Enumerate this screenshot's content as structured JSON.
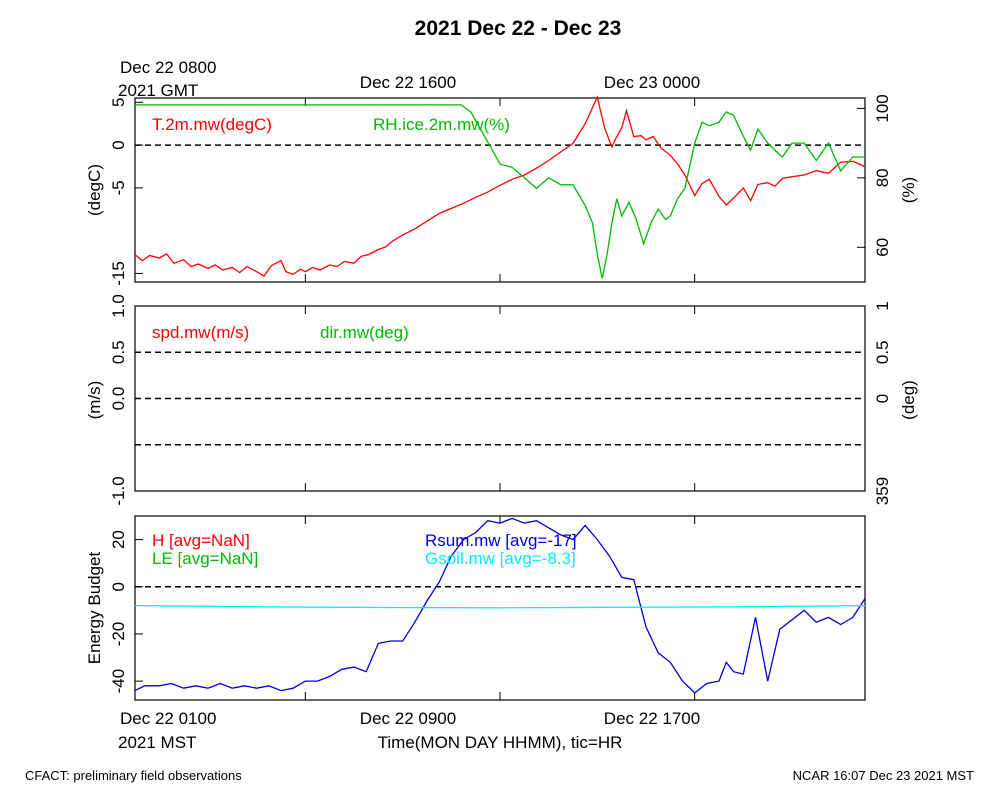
{
  "title": "2021 Dec 22 - Dec 23",
  "top_axis": {
    "first_label_line1": "Dec 22 0800",
    "first_label_line2": "2021 GMT",
    "labels": [
      "Dec 22 1600",
      "Dec 23 0000"
    ]
  },
  "bottom_axis": {
    "first_label_line1": "Dec 22 0100",
    "first_label_line2": "2021 MST",
    "labels": [
      "Dec 22 0900",
      "Dec 22 1700"
    ],
    "title": "Time(MON DAY HHMM), tic=HR"
  },
  "footer": {
    "left": "CFACT: preliminary field observations",
    "right": "NCAR 16:07 Dec 23 2021 MST"
  },
  "colors": {
    "red": "#ff0000",
    "green": "#00bb00",
    "blue": "#0000dd",
    "cyan": "#00eeff",
    "black": "#000000"
  },
  "chart_data": [
    {
      "type": "line",
      "x_unit": "hours since Dec 22 0100 MST",
      "xlim": [
        0,
        30
      ],
      "left_axis": {
        "label": "(degC)",
        "ylim": [
          -16,
          5.5
        ],
        "ticks": [
          "5",
          "0",
          "-5",
          "-15"
        ]
      },
      "right_axis": {
        "label": "(%)",
        "ylim": [
          50,
          103
        ],
        "ticks": [
          "100",
          "80",
          "60"
        ]
      },
      "zero_line": 0,
      "series": [
        {
          "name": "T.2m.mw(degC)",
          "axis": "left",
          "color": "red",
          "x": [
            0,
            0.3,
            0.6,
            1,
            1.3,
            1.6,
            2,
            2.3,
            2.6,
            3,
            3.3,
            3.6,
            4,
            4.3,
            4.6,
            5,
            5.3,
            5.6,
            6,
            6.2,
            6.5,
            6.8,
            7,
            7.3,
            7.6,
            8,
            8.3,
            8.6,
            9,
            9.3,
            9.6,
            10,
            10.3,
            10.6,
            11,
            11.5,
            12,
            12.5,
            13,
            13.5,
            14,
            14.5,
            15,
            15.5,
            16,
            16.5,
            17,
            17.5,
            18,
            18.5,
            19,
            19.3,
            19.6,
            19.8,
            20,
            20.2,
            20.5,
            20.8,
            21,
            21.3,
            21.6,
            22,
            22.3,
            22.6,
            23,
            23.3,
            23.6,
            24,
            24.3,
            24.6,
            25,
            25.3,
            25.6,
            26,
            26.3,
            26.6,
            27,
            27.5,
            28,
            28.5,
            29,
            29.5,
            30
          ],
          "y": [
            -12.8,
            -13.5,
            -12.9,
            -13.2,
            -12.7,
            -13.8,
            -13.4,
            -14.2,
            -13.9,
            -14.4,
            -14.0,
            -14.6,
            -14.3,
            -14.9,
            -14.2,
            -14.8,
            -15.3,
            -14.1,
            -13.5,
            -14.8,
            -15.1,
            -14.5,
            -14.8,
            -14.3,
            -14.6,
            -14.0,
            -14.2,
            -13.6,
            -13.8,
            -13.0,
            -12.8,
            -12.2,
            -11.9,
            -11.2,
            -10.5,
            -9.8,
            -8.9,
            -8.0,
            -7.4,
            -6.8,
            -6.1,
            -5.5,
            -4.7,
            -4.0,
            -3.5,
            -2.7,
            -1.8,
            -0.8,
            0.2,
            2.5,
            5.6,
            2.0,
            -0.2,
            1.0,
            2.0,
            4.0,
            1.0,
            1.1,
            0.6,
            1.0,
            -0.3,
            -1.2,
            -2.2,
            -3.5,
            -5.9,
            -4.5,
            -4.0,
            -6.0,
            -7.0,
            -6.2,
            -5.0,
            -6.5,
            -4.6,
            -4.4,
            -4.8,
            -3.9,
            -3.7,
            -3.5,
            -3.0,
            -3.3,
            -2.0,
            -1.9,
            -2.5
          ]
        },
        {
          "name": "RH.ice.2m.mw(%)",
          "axis": "right",
          "color": "green",
          "x": [
            0,
            3,
            6,
            9,
            12,
            13.4,
            13.8,
            14.2,
            14.6,
            15,
            15.5,
            16,
            16.5,
            17,
            17.5,
            18,
            18.5,
            18.8,
            19,
            19.2,
            19.4,
            19.6,
            19.8,
            20,
            20.3,
            20.6,
            20.9,
            21.2,
            21.5,
            21.8,
            22,
            22.3,
            22.6,
            23,
            23.3,
            23.6,
            24,
            24.3,
            24.6,
            25,
            25.3,
            25.6,
            26,
            26.3,
            26.6,
            27,
            27.5,
            28,
            28.5,
            29,
            29.5,
            30
          ],
          "y": [
            101,
            101,
            101,
            101,
            101,
            101,
            99,
            94,
            89,
            84,
            83,
            80,
            77,
            80,
            78,
            78,
            72,
            67,
            58,
            51,
            58,
            67,
            74,
            69,
            73,
            68,
            61,
            67,
            71,
            68,
            69,
            74,
            77,
            90,
            96,
            95,
            96,
            99,
            98,
            92,
            88,
            94,
            90,
            88,
            86,
            90,
            90,
            85,
            90,
            82,
            86,
            86
          ]
        }
      ]
    },
    {
      "type": "line",
      "x_unit": "hours since Dec 22 0100 MST",
      "xlim": [
        0,
        30
      ],
      "left_axis": {
        "label": "(m/s)",
        "ylim": [
          -1.0,
          1.0
        ],
        "ticks": [
          "1.0",
          "0.5",
          "0.0",
          "-1.0"
        ]
      },
      "right_axis": {
        "label": "(deg)",
        "ticks": [
          "1",
          "0.5",
          "0",
          "359"
        ]
      },
      "dashed_levels": [
        0.5,
        0.0,
        -0.5
      ],
      "series": [
        {
          "name": "spd.mw(m/s)",
          "axis": "left",
          "color": "red",
          "x": [],
          "y": []
        },
        {
          "name": "dir.mw(deg)",
          "axis": "right",
          "color": "green",
          "x": [],
          "y": []
        }
      ]
    },
    {
      "type": "line",
      "x_unit": "hours since Dec 22 0100 MST",
      "xlim": [
        0,
        30
      ],
      "left_axis": {
        "label": "Energy Budget",
        "ylim": [
          -48,
          30
        ],
        "ticks": [
          "20",
          "0",
          "-20",
          "-40"
        ]
      },
      "zero_line": 0,
      "series": [
        {
          "name": "H [avg=NaN]",
          "color": "red",
          "x": [],
          "y": []
        },
        {
          "name": "LE [avg=NaN]",
          "color": "green",
          "x": [],
          "y": []
        },
        {
          "name": "Rsum.mw [avg=-17]",
          "color": "blue",
          "x": [
            0,
            0.4,
            1,
            1.5,
            2,
            2.5,
            3,
            3.5,
            4,
            4.5,
            5,
            5.5,
            6,
            6.5,
            7,
            7.5,
            8,
            8.5,
            9,
            9.5,
            10,
            10.5,
            11,
            11.5,
            12,
            12.5,
            13,
            13.5,
            14,
            14.5,
            15,
            15.5,
            16,
            16.5,
            17,
            17.5,
            18,
            18.5,
            19,
            19.5,
            20,
            20.5,
            21,
            21.5,
            22,
            22.5,
            23,
            23.5,
            24,
            24.3,
            24.6,
            25,
            25.5,
            26,
            26.5,
            27,
            27.5,
            28,
            28.5,
            29,
            29.5,
            30
          ],
          "y": [
            -44,
            -42,
            -42,
            -41,
            -43,
            -42,
            -43,
            -41,
            -43,
            -42,
            -43,
            -42,
            -44,
            -43,
            -40,
            -40,
            -38,
            -35,
            -34,
            -36,
            -24,
            -23,
            -23,
            -15,
            -6,
            2,
            13,
            20,
            23,
            28,
            27,
            29,
            27,
            28,
            25,
            22,
            20,
            26,
            20,
            13,
            4,
            3,
            -17,
            -28,
            -32,
            -40,
            -45,
            -41,
            -40,
            -32,
            -36,
            -37,
            -13,
            -40,
            -18,
            -14,
            -10,
            -15,
            -13,
            -16,
            -13,
            -5
          ]
        },
        {
          "name": "Gsoil.mw [avg=-8.3]",
          "color": "cyan",
          "x": [
            0,
            5,
            10,
            15,
            20,
            25,
            30
          ],
          "y": [
            -8,
            -8.5,
            -8.8,
            -8.9,
            -8.7,
            -8.5,
            -8
          ]
        }
      ]
    }
  ]
}
